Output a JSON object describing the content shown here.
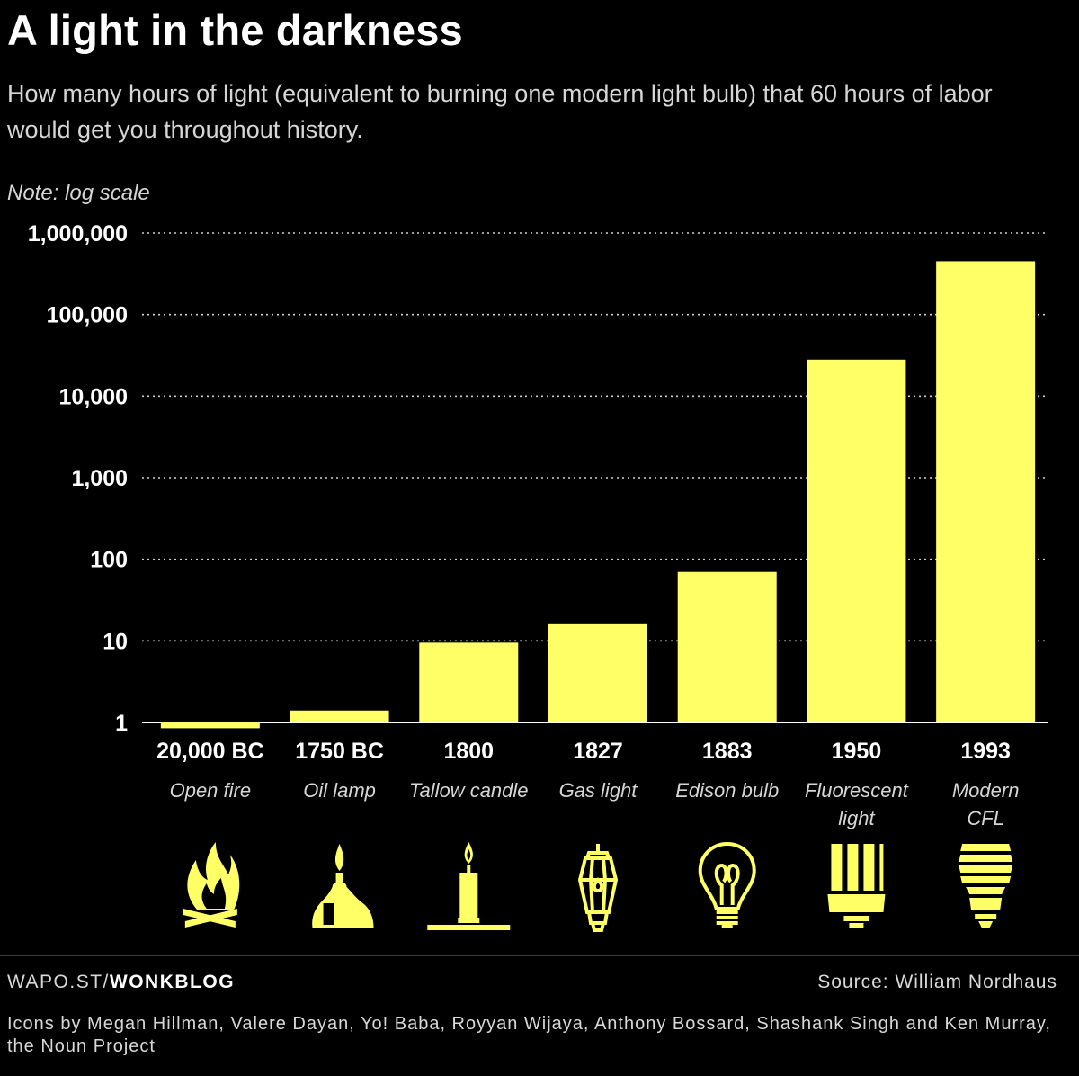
{
  "title": "A light in the darkness",
  "subtitle": "How many hours of light (equivalent to burning one modern light bulb) that 60 hours of labor would get you throughout history.",
  "note": "Note: log scale",
  "colors": {
    "bar": "#ffff66",
    "background": "#000000",
    "text": "#ffffff",
    "grid": "#cfcfcf"
  },
  "chart_data": {
    "type": "bar",
    "scale": "log",
    "ylim": [
      1,
      1000000
    ],
    "yticks": [
      1,
      10,
      100,
      1000,
      10000,
      100000,
      1000000
    ],
    "ytick_labels": [
      "1",
      "10",
      "100",
      "1,000",
      "10,000",
      "100,000",
      "1,000,000"
    ],
    "grid": true,
    "categories": [
      "20,000 BC",
      "1750 BC",
      "1800",
      "1827",
      "1883",
      "1950",
      "1993"
    ],
    "category_sublabels": [
      [
        "Open fire"
      ],
      [
        "Oil lamp"
      ],
      [
        "Tallow candle"
      ],
      [
        "Gas light"
      ],
      [
        "Edison bulb"
      ],
      [
        "Fluorescent",
        "light"
      ],
      [
        "Modern",
        "CFL"
      ]
    ],
    "values": [
      0.85,
      1.4,
      9.5,
      16,
      70,
      28000,
      450000
    ],
    "icons": [
      "fire-icon",
      "oil-lamp-icon",
      "candle-icon",
      "gas-light-icon",
      "edison-bulb-icon",
      "fluorescent-light-icon",
      "cfl-bulb-icon"
    ]
  },
  "footer": {
    "site_prefix": "WAPO.ST/",
    "site_blog": "WONKBLOG",
    "source": "Source: William Nordhaus",
    "credits": "Icons by Megan Hillman, Valere Dayan, Yo! Baba, Royyan Wijaya, Anthony Bossard,  Shashank Singh and Ken Murray, the Noun Project"
  }
}
